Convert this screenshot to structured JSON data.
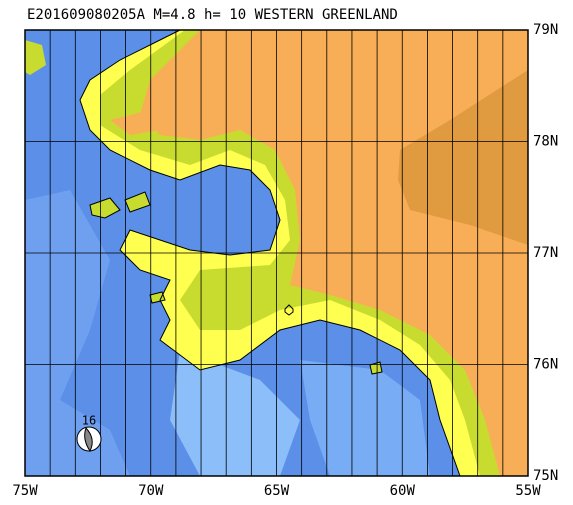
{
  "title": "E201609080205A M=4.8 h= 10 WESTERN GREENLAND",
  "longitude_labels": [
    "75W",
    "70W",
    "65W",
    "60W",
    "55W"
  ],
  "latitude_labels": [
    "79N",
    "78N",
    "77N",
    "76N",
    "75N"
  ],
  "event_label": "16"
}
